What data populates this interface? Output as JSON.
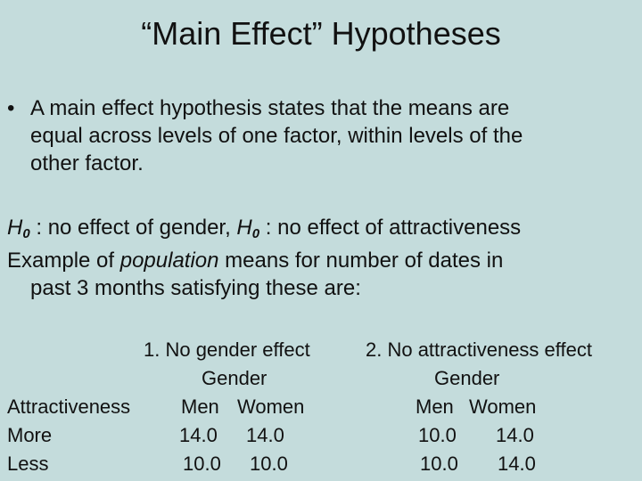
{
  "title": "“Main Effect” Hypotheses",
  "bullet": {
    "marker": "•",
    "lines": [
      "A main effect hypothesis states that the means are",
      "equal across levels of one factor, within levels of the",
      "other factor."
    ]
  },
  "hypotheses": {
    "h_letter": "H",
    "h_sub": "0",
    "h1_text": " : no effect of gender, ",
    "h2_text": " : no effect of attractiveness"
  },
  "example": {
    "pre": "Example of ",
    "italic": "population",
    "post": " means for number of dates in",
    "line2": "past 3 months satisfying these are:"
  },
  "table": {
    "row_header": "Attractiveness",
    "rows": [
      "More",
      "Less"
    ],
    "case1": {
      "title": "1. No gender effect",
      "factor": "Gender",
      "col1": "Men",
      "col2": "Women",
      "more": [
        "14.0",
        "14.0"
      ],
      "less": [
        "10.0",
        "10.0"
      ]
    },
    "case2": {
      "title": "2. No attractiveness effect",
      "factor": "Gender",
      "col1": "Men",
      "col2": "Women",
      "more": [
        "10.0",
        "14.0"
      ],
      "less": [
        "10.0",
        "14.0"
      ]
    }
  }
}
